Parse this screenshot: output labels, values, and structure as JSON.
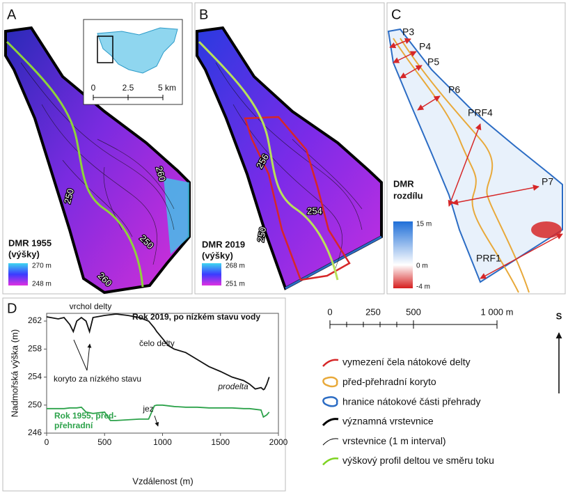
{
  "panels": {
    "a": {
      "label": "A",
      "contours": [
        "250",
        "260",
        "250",
        "260"
      ],
      "legend_title": [
        "DMR 1955",
        "(výšky)"
      ],
      "legend_max": "270 m",
      "legend_min": "248 m",
      "inset_scale": [
        "0",
        "2.5",
        "5 km"
      ]
    },
    "b": {
      "label": "B",
      "contours": [
        "256",
        "254",
        "250"
      ],
      "legend_title": [
        "DMR 2019",
        "(výšky)"
      ],
      "legend_max": "268 m",
      "legend_min": "251 m"
    },
    "c": {
      "label": "C",
      "profiles": [
        "P3",
        "P4",
        "P5",
        "P6",
        "PRF4",
        "P7",
        "PRF1"
      ],
      "legend_title": [
        "DMR",
        "rozdílu"
      ],
      "legend_labels": [
        "15 m",
        "0 m",
        "-4 m"
      ]
    }
  },
  "scale_bar": [
    "0",
    "250",
    "500",
    "1 000 m"
  ],
  "north": "S",
  "legend": [
    {
      "label": "vymezení čela nátokové delty",
      "color": "#d62728",
      "icon": "line"
    },
    {
      "label": "před-přehradní koryto",
      "color": "#e8a93a",
      "icon": "outline"
    },
    {
      "label": "hranice nátokové části přehrady",
      "color": "#2b6cc4",
      "icon": "outline"
    },
    {
      "label": "významná vrstevnice",
      "color": "#000000",
      "icon": "thick-line"
    },
    {
      "label": "vrstevnice (1 m interval)",
      "color": "#000000",
      "icon": "thin-line"
    },
    {
      "label": "výškový profil deltou ve směru toku",
      "color": "#7ed321",
      "icon": "line"
    }
  ],
  "chart_data": {
    "type": "line",
    "label": "D",
    "x_label": "Vzdálenost (m)",
    "y_label": "Nadmořská výška (m)",
    "x": [
      0,
      100,
      150,
      200,
      230,
      260,
      300,
      340,
      370,
      400,
      500,
      550,
      600,
      700,
      800,
      880,
      930,
      950,
      1000,
      1050,
      1100,
      1200,
      1300,
      1400,
      1500,
      1600,
      1700,
      1750,
      1800,
      1850,
      1870,
      1880,
      1900,
      1920
    ],
    "xlim": [
      0,
      2000
    ],
    "xticks": [
      0,
      500,
      1000,
      1500,
      2000
    ],
    "ylim": [
      246,
      263.1
    ],
    "yticks": [
      246,
      250,
      254,
      258,
      262
    ],
    "series": [
      {
        "color": "#111111",
        "values": [
          262.6,
          262.3,
          262.5,
          261.5,
          260.5,
          262.0,
          262.5,
          262.0,
          260.5,
          262.5,
          262.8,
          262.9,
          263.0,
          262.8,
          262.5,
          262.0,
          261.0,
          260.5,
          259.5,
          258.5,
          258.0,
          257.5,
          256.5,
          255.5,
          254.8,
          254.0,
          253.5,
          253.0,
          252.3,
          252.5,
          252.2,
          252.3,
          253.0,
          254.0
        ]
      },
      {
        "color": "#2ca24a",
        "values": [
          249.5,
          249.5,
          249.5,
          249.6,
          249.6,
          249.6,
          249.7,
          249.0,
          248.9,
          248.8,
          249.0,
          247.8,
          247.8,
          247.9,
          248.0,
          248.0,
          249.9,
          250.0,
          250.0,
          249.9,
          249.8,
          249.7,
          249.7,
          249.6,
          249.6,
          249.6,
          249.5,
          249.5,
          249.4,
          249.3,
          248.3,
          248.4,
          248.6,
          249.0
        ]
      }
    ],
    "annotations": [
      "vrchol delty",
      "Rok 2019, po nízkém stavu vody",
      "čelo delty",
      "koryto za nízkého stavu",
      "prodelta",
      "Rok 1955, před-",
      "přehradní",
      "jez"
    ]
  }
}
